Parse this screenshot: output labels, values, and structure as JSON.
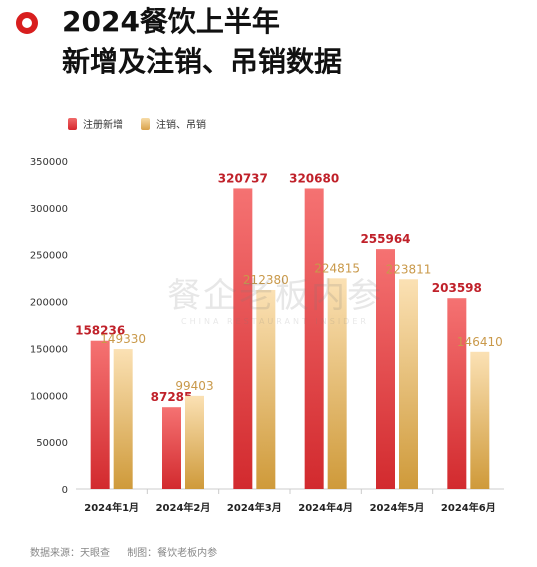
{
  "title": {
    "line1": "2024餐饮上半年",
    "line2": "新增及注销、吊销数据"
  },
  "watermark": {
    "main": "餐企老板内参",
    "sub": "CHINA RESTAURANT INSIDER"
  },
  "source": {
    "data": "数据来源：天眼查",
    "made": "制图：餐饮老板内参"
  },
  "colors": {
    "accent": "#d81e1e",
    "new_top": "#f57272",
    "new_bottom": "#d22a2e",
    "cancel_top": "#fbe1b4",
    "cancel_bottom": "#cf9a3a"
  },
  "chart_data": {
    "type": "bar",
    "title": "2024餐饮上半年新增及注销、吊销数据",
    "categories": [
      "2024年1月",
      "2024年2月",
      "2024年3月",
      "2024年4月",
      "2024年5月",
      "2024年6月"
    ],
    "series": [
      {
        "name": "注册新增",
        "values": [
          158236,
          87285,
          320737,
          320680,
          255964,
          203598
        ],
        "label_color": "#c0212a"
      },
      {
        "name": "注销、吊销",
        "values": [
          149330,
          99403,
          212380,
          224815,
          223811,
          146410
        ],
        "label_color": "#c9994a"
      }
    ],
    "ylim": [
      0,
      350000
    ],
    "yticks": [
      0,
      50000,
      100000,
      150000,
      200000,
      250000,
      300000,
      350000
    ],
    "grid": false,
    "legend_position": "top-left"
  }
}
